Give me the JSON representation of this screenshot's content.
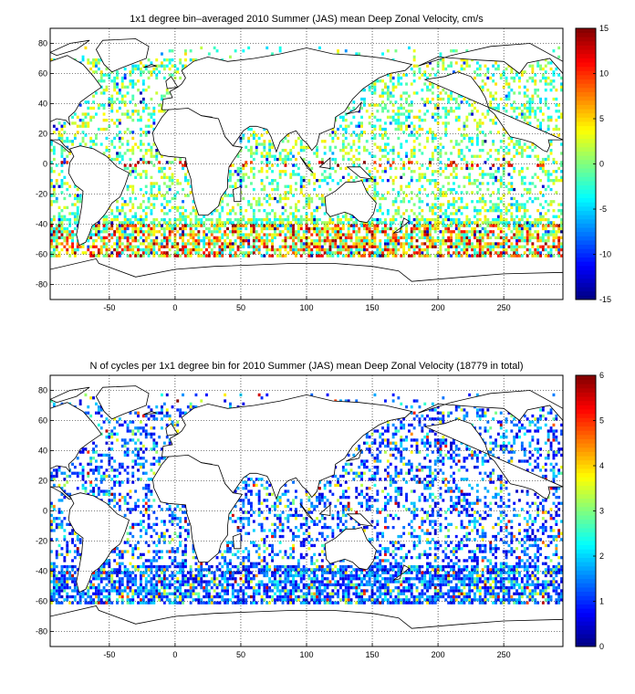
{
  "chart_data": [
    {
      "type": "heatmap",
      "title": "1x1 degree bin–averaged 2010 Summer (JAS) mean Deep Zonal Velocity, cm/s",
      "xlabel": "",
      "ylabel": "",
      "xlim": [
        -95,
        295
      ],
      "ylim": [
        -90,
        90
      ],
      "x_ticks": [
        -50,
        0,
        50,
        100,
        150,
        200,
        250
      ],
      "y_ticks": [
        -80,
        -60,
        -40,
        -20,
        0,
        20,
        40,
        60,
        80
      ],
      "grid": true,
      "colorbar": {
        "min": -15,
        "max": 15,
        "ticks": [
          -15,
          -10,
          -5,
          0,
          5,
          10,
          15
        ],
        "colormap": "jet"
      },
      "background": "land outline on white"
    },
    {
      "type": "heatmap",
      "title": "N of cycles per 1x1 degree bin for 2010 Summer (JAS) mean Deep Zonal Velocity (18779 in total)",
      "xlabel": "",
      "ylabel": "",
      "xlim": [
        -95,
        295
      ],
      "ylim": [
        -90,
        90
      ],
      "x_ticks": [
        -50,
        0,
        50,
        100,
        150,
        200,
        250
      ],
      "y_ticks": [
        -80,
        -60,
        -40,
        -20,
        0,
        20,
        40,
        60,
        80
      ],
      "grid": true,
      "colorbar": {
        "min": 0,
        "max": 6,
        "ticks": [
          0,
          1,
          2,
          3,
          4,
          5,
          6
        ],
        "colormap": "jet"
      },
      "total_cycles": 18779,
      "background": "land outline on white"
    }
  ]
}
